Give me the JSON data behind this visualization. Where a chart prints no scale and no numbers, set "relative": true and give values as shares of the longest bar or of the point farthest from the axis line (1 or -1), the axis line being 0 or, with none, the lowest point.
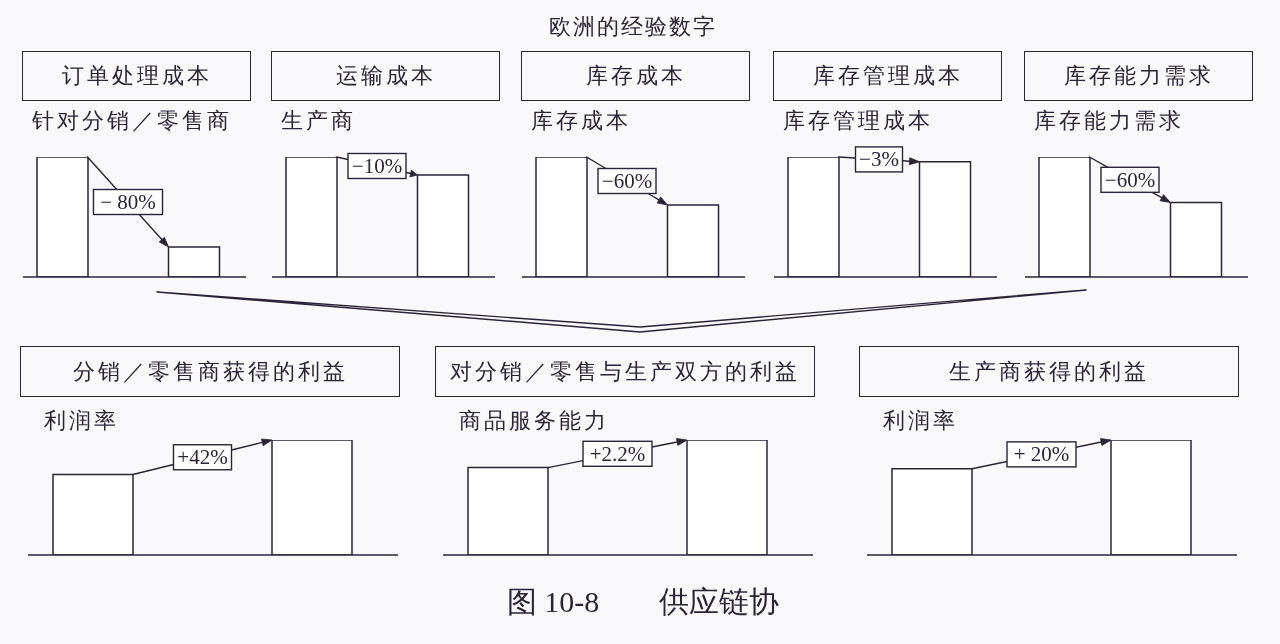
{
  "chart_data": [
    {
      "type": "other",
      "title": "欧洲的经验数字"
    },
    {
      "type": "bar",
      "title": "订单处理成本",
      "subtitle": "针对分销／零售商",
      "categories": [
        null,
        null
      ],
      "values": [
        1,
        0.25
      ],
      "relative": true,
      "color": "#ffffff",
      "annotations": [
        "− 80%"
      ]
    },
    {
      "type": "bar",
      "title": "运输成本",
      "subtitle": "生产商",
      "categories": [
        null,
        null
      ],
      "values": [
        1,
        0.85
      ],
      "relative": true,
      "color": "#ffffff",
      "annotations": [
        "−10%"
      ]
    },
    {
      "type": "bar",
      "title": "库存成本",
      "subtitle": "库存成本",
      "categories": [
        null,
        null
      ],
      "values": [
        1,
        0.6
      ],
      "relative": true,
      "color": "#ffffff",
      "annotations": [
        "−60%"
      ]
    },
    {
      "type": "bar",
      "title": "库存管理成本",
      "subtitle": "库存管理成本",
      "categories": [
        null,
        null
      ],
      "values": [
        1,
        0.96
      ],
      "relative": true,
      "color": "#ffffff",
      "annotations": [
        "−3%"
      ]
    },
    {
      "type": "bar",
      "title": "库存能力需求",
      "subtitle": "库存能力需求",
      "categories": [
        null,
        null
      ],
      "values": [
        1,
        0.62
      ],
      "relative": true,
      "color": "#ffffff",
      "annotations": [
        "−60%"
      ]
    },
    {
      "type": "bar",
      "title": "分销／零售商获得的利益",
      "subtitle": "利润率",
      "categories": [
        null,
        null
      ],
      "values": [
        0.7,
        1
      ],
      "relative": true,
      "color": "#ffffff",
      "annotations": [
        "+42%"
      ]
    },
    {
      "type": "bar",
      "title": "对分销／零售与生产双方的利益",
      "subtitle": "商品服务能力",
      "categories": [
        null,
        null
      ],
      "values": [
        0.76,
        1
      ],
      "relative": true,
      "color": "#ffffff",
      "annotations": [
        "+2.2%"
      ]
    },
    {
      "type": "bar",
      "title": "生产商获得的利益",
      "subtitle": "利润率",
      "categories": [
        null,
        null
      ],
      "values": [
        0.75,
        1
      ],
      "relative": true,
      "color": "#ffffff",
      "annotations": [
        "+ 20%"
      ]
    },
    {
      "type": "other",
      "annotations": [
        "图 10-8　　供应链协"
      ]
    }
  ]
}
